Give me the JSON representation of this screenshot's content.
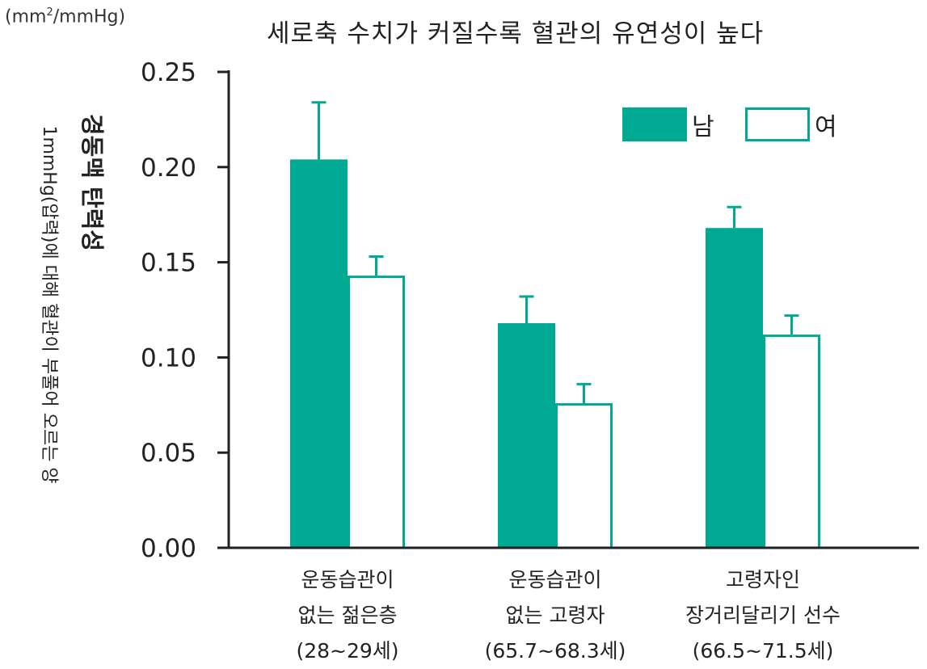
{
  "unit_prefix": "(mm",
  "unit_sup": "2",
  "unit_suffix": "/mmHg)",
  "chart_data": {
    "type": "bar",
    "title": "세로축 수치가 커질수록 혈관의 유연성이 높다",
    "ylabel": "경동맥 탄력성",
    "ylabel_sub": "1mmHg(압력)에 대해 혈관이 부풀어 오르는 양",
    "ylim": [
      0,
      0.25
    ],
    "yticks": [
      "0.00",
      "0.05",
      "0.10",
      "0.15",
      "0.20",
      "0.25"
    ],
    "grid": false,
    "legend_position": "top-right",
    "categories": [
      [
        "운동습관이",
        "없는 젊은층",
        "(28~29세)"
      ],
      [
        "운동습관이",
        "없는 고령자",
        "(65.7~68.3세)"
      ],
      [
        "고령자인",
        "장거리달리기 선수",
        "(66.5~71.5세)"
      ]
    ],
    "series": [
      {
        "name": "남",
        "values": [
          0.204,
          0.118,
          0.168
        ],
        "error_upper": [
          0.234,
          0.132,
          0.179
        ],
        "color": "#00a992",
        "fill": "solid"
      },
      {
        "name": "여",
        "values": [
          0.143,
          0.076,
          0.112
        ],
        "error_upper": [
          0.153,
          0.086,
          0.122
        ],
        "color": "#00a992",
        "fill": "outline"
      }
    ]
  }
}
